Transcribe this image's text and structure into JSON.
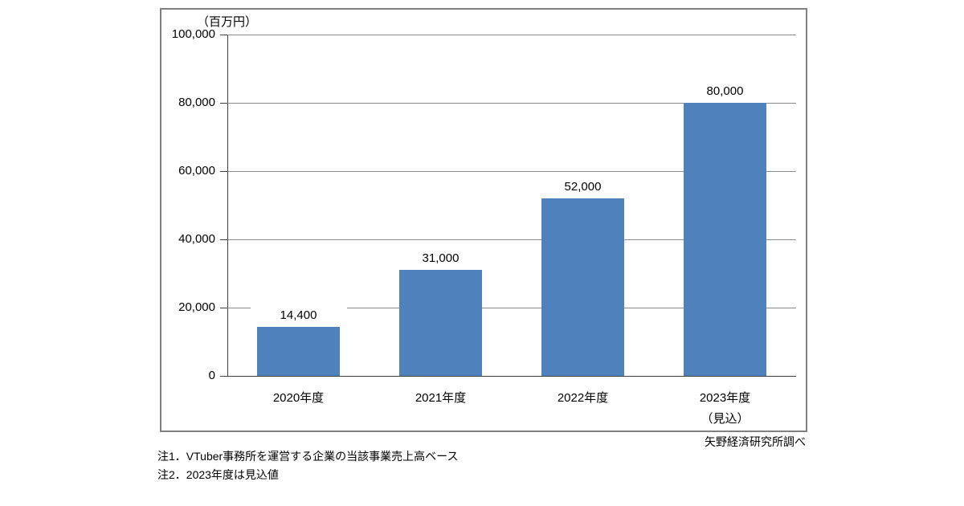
{
  "chart_data": {
    "type": "bar",
    "unit_label": "（百万円）",
    "categories": [
      [
        "2020年度"
      ],
      [
        "2021年度"
      ],
      [
        "2022年度"
      ],
      [
        "2023年度",
        "（見込）"
      ]
    ],
    "values": [
      14400,
      31000,
      52000,
      80000
    ],
    "value_labels": [
      "14,400",
      "31,000",
      "52,000",
      "80,000"
    ],
    "ylim": [
      0,
      100000
    ],
    "y_tick_interval": 20000,
    "y_tick_labels": [
      "100,000",
      "80,000",
      "60,000",
      "40,000",
      "20,000",
      "0"
    ],
    "grid": true,
    "legend": "none",
    "bar_color": "#4F81BD",
    "grid_color": "#8a8a8a",
    "axis_color": "#3f3f3f",
    "border_color": "#808080"
  },
  "source_credit": "矢野経済研究所調べ",
  "footnotes": [
    "注1．VTuber事務所を運営する企業の当該事業売上高ベース",
    "注2．2023年度は見込値"
  ]
}
